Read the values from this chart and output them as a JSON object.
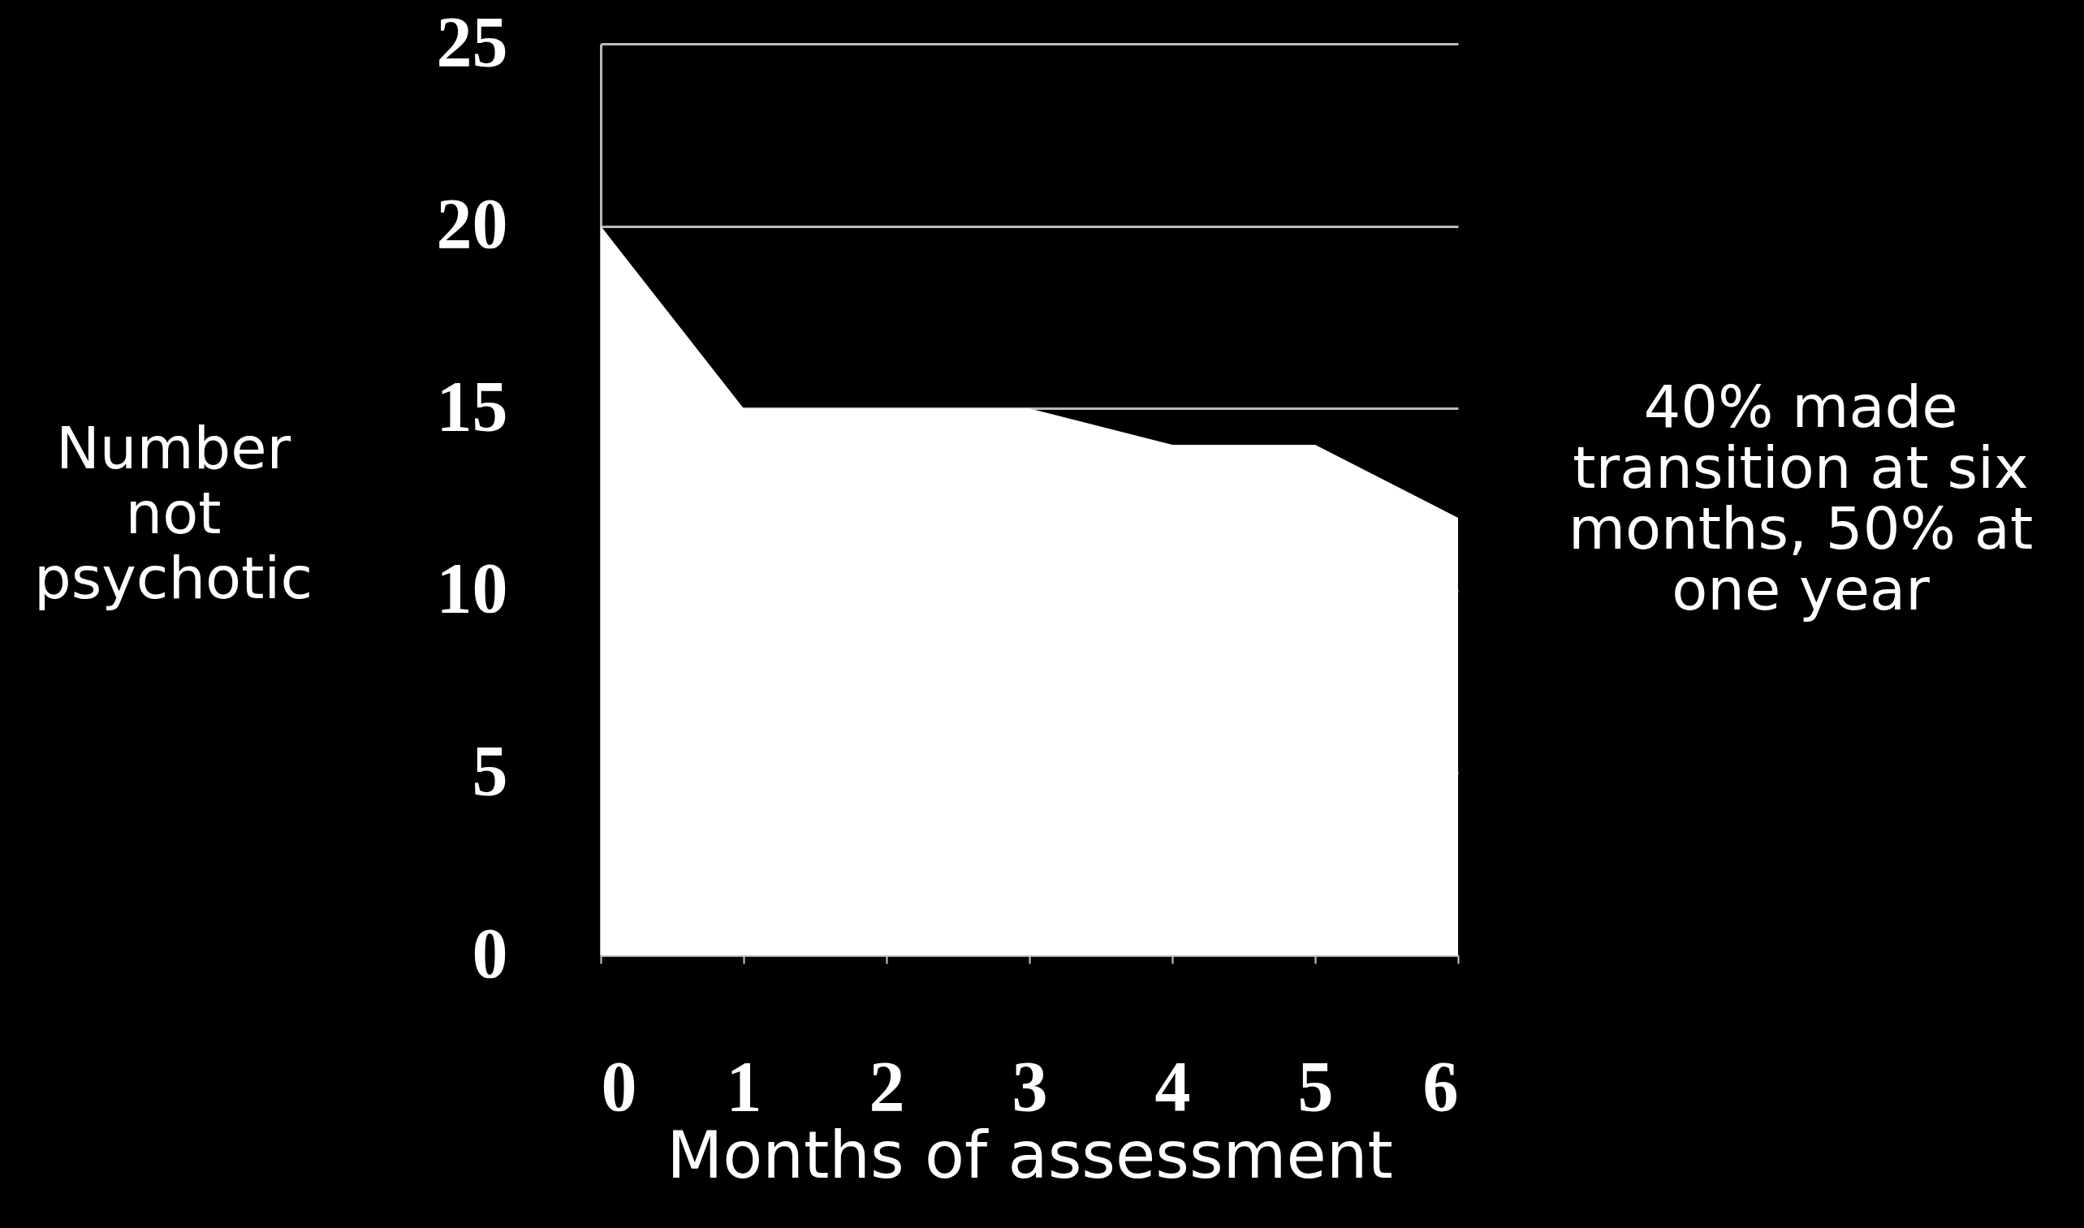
{
  "chart_data": {
    "type": "area",
    "xlabel": "Months of assessment",
    "ylabel": "Number not psychotic",
    "x": [
      0,
      1,
      2,
      3,
      4,
      5,
      6
    ],
    "series": [
      {
        "color": "#ffffff",
        "values": [
          20,
          15,
          15,
          15,
          14,
          14,
          12
        ]
      }
    ],
    "xlim": [
      0,
      6
    ],
    "xticks": [
      0,
      1,
      2,
      3,
      4,
      5,
      6
    ],
    "ylim": [
      0,
      25
    ],
    "yticks": [
      0,
      5,
      10,
      15,
      20,
      25
    ],
    "grid": "y",
    "annotations": [
      "40% made transition at six months, 50% at one year"
    ]
  }
}
